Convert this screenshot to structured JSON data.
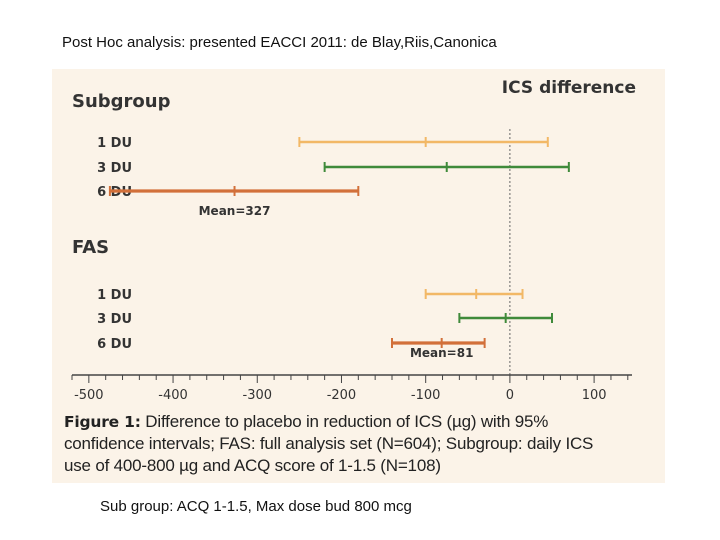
{
  "header": {
    "text": "Post Hoc analysis: presented EACCI 2011: de Blay,Riis,Canonica"
  },
  "footer": {
    "text": "Sub group: ACQ 1-1.5, Max dose bud 800 mcg"
  },
  "caption": {
    "label": "Figure 1:",
    "line1": " Difference to placebo in reduction of ICS (µg) with 95%",
    "line2": "confidence intervals; FAS: full analysis set (N=604); Subgroup: daily ICS",
    "line3": "use of 400-800 µg and ACQ score of 1-1.5 (N=108)"
  },
  "colors": {
    "light": "#f2b866",
    "green": "#3f8a3a",
    "dark": "#d2703a",
    "axis": "#444444",
    "text": "#333333"
  },
  "chart_data": {
    "type": "forest",
    "title": "ICS difference",
    "xlabel": "",
    "xlim": [
      -520,
      145
    ],
    "ticks": [
      -500,
      -400,
      -300,
      -200,
      -100,
      0,
      100
    ],
    "reference_line": 0,
    "groups": [
      {
        "name": "Subgroup",
        "rows": [
          {
            "label": "1 DU",
            "mean": -100,
            "low": -250,
            "high": 45,
            "color": "light"
          },
          {
            "label": "3 DU",
            "mean": -75,
            "low": -220,
            "high": 70,
            "color": "green"
          },
          {
            "label": "6 DU",
            "mean": -327,
            "low": -475,
            "high": -180,
            "color": "dark"
          }
        ],
        "annotation": "Mean=327"
      },
      {
        "name": "FAS",
        "rows": [
          {
            "label": "1 DU",
            "mean": -40,
            "low": -100,
            "high": 15,
            "color": "light"
          },
          {
            "label": "3 DU",
            "mean": -5,
            "low": -60,
            "high": 50,
            "color": "green"
          },
          {
            "label": "6 DU",
            "mean": -81,
            "low": -140,
            "high": -30,
            "color": "dark"
          }
        ],
        "annotation": "Mean=81"
      }
    ]
  }
}
